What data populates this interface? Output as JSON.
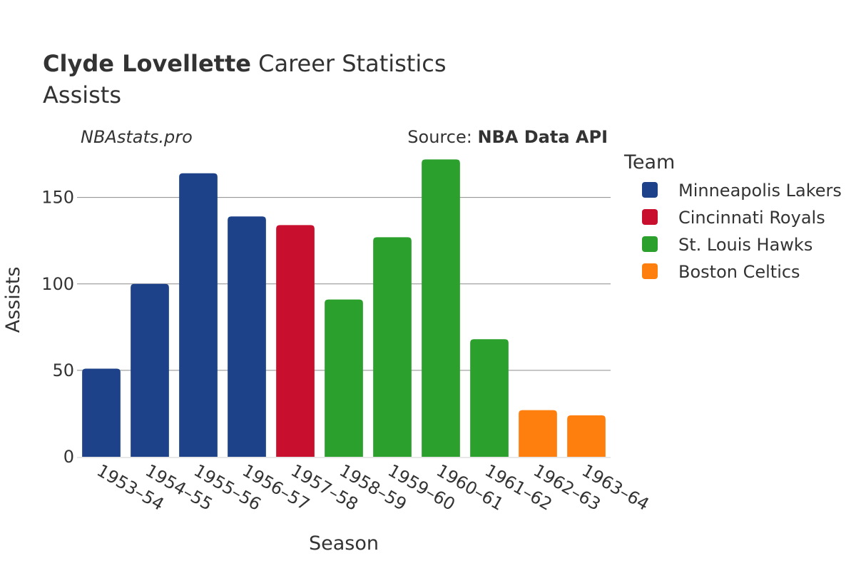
{
  "chart_data": {
    "type": "bar",
    "title_bold": "Clyde Lovellette",
    "title_rest": " Career Statistics",
    "subtitle": "Assists",
    "watermark": "NBAstats.pro",
    "source_label": "Source: ",
    "source_value": "NBA Data API",
    "xlabel": "Season",
    "ylabel": "Assists",
    "ylim": [
      0,
      180
    ],
    "yticks": [
      0,
      50,
      100,
      150
    ],
    "legend_title": "Team",
    "teams": [
      {
        "name": "Minneapolis Lakers",
        "color": "#1d428a"
      },
      {
        "name": "Cincinnati Royals",
        "color": "#c8102e"
      },
      {
        "name": "St. Louis Hawks",
        "color": "#2ca02c"
      },
      {
        "name": "Boston Celtics",
        "color": "#ff7f0e"
      }
    ],
    "categories": [
      "1953–54",
      "1954–55",
      "1955–56",
      "1956–57",
      "1957–58",
      "1958–59",
      "1959–60",
      "1960–61",
      "1961–62",
      "1962–63",
      "1963–64"
    ],
    "values": [
      51,
      100,
      164,
      139,
      134,
      91,
      127,
      172,
      68,
      27,
      24
    ],
    "team_index": [
      0,
      0,
      0,
      0,
      1,
      2,
      2,
      2,
      2,
      3,
      3
    ]
  }
}
